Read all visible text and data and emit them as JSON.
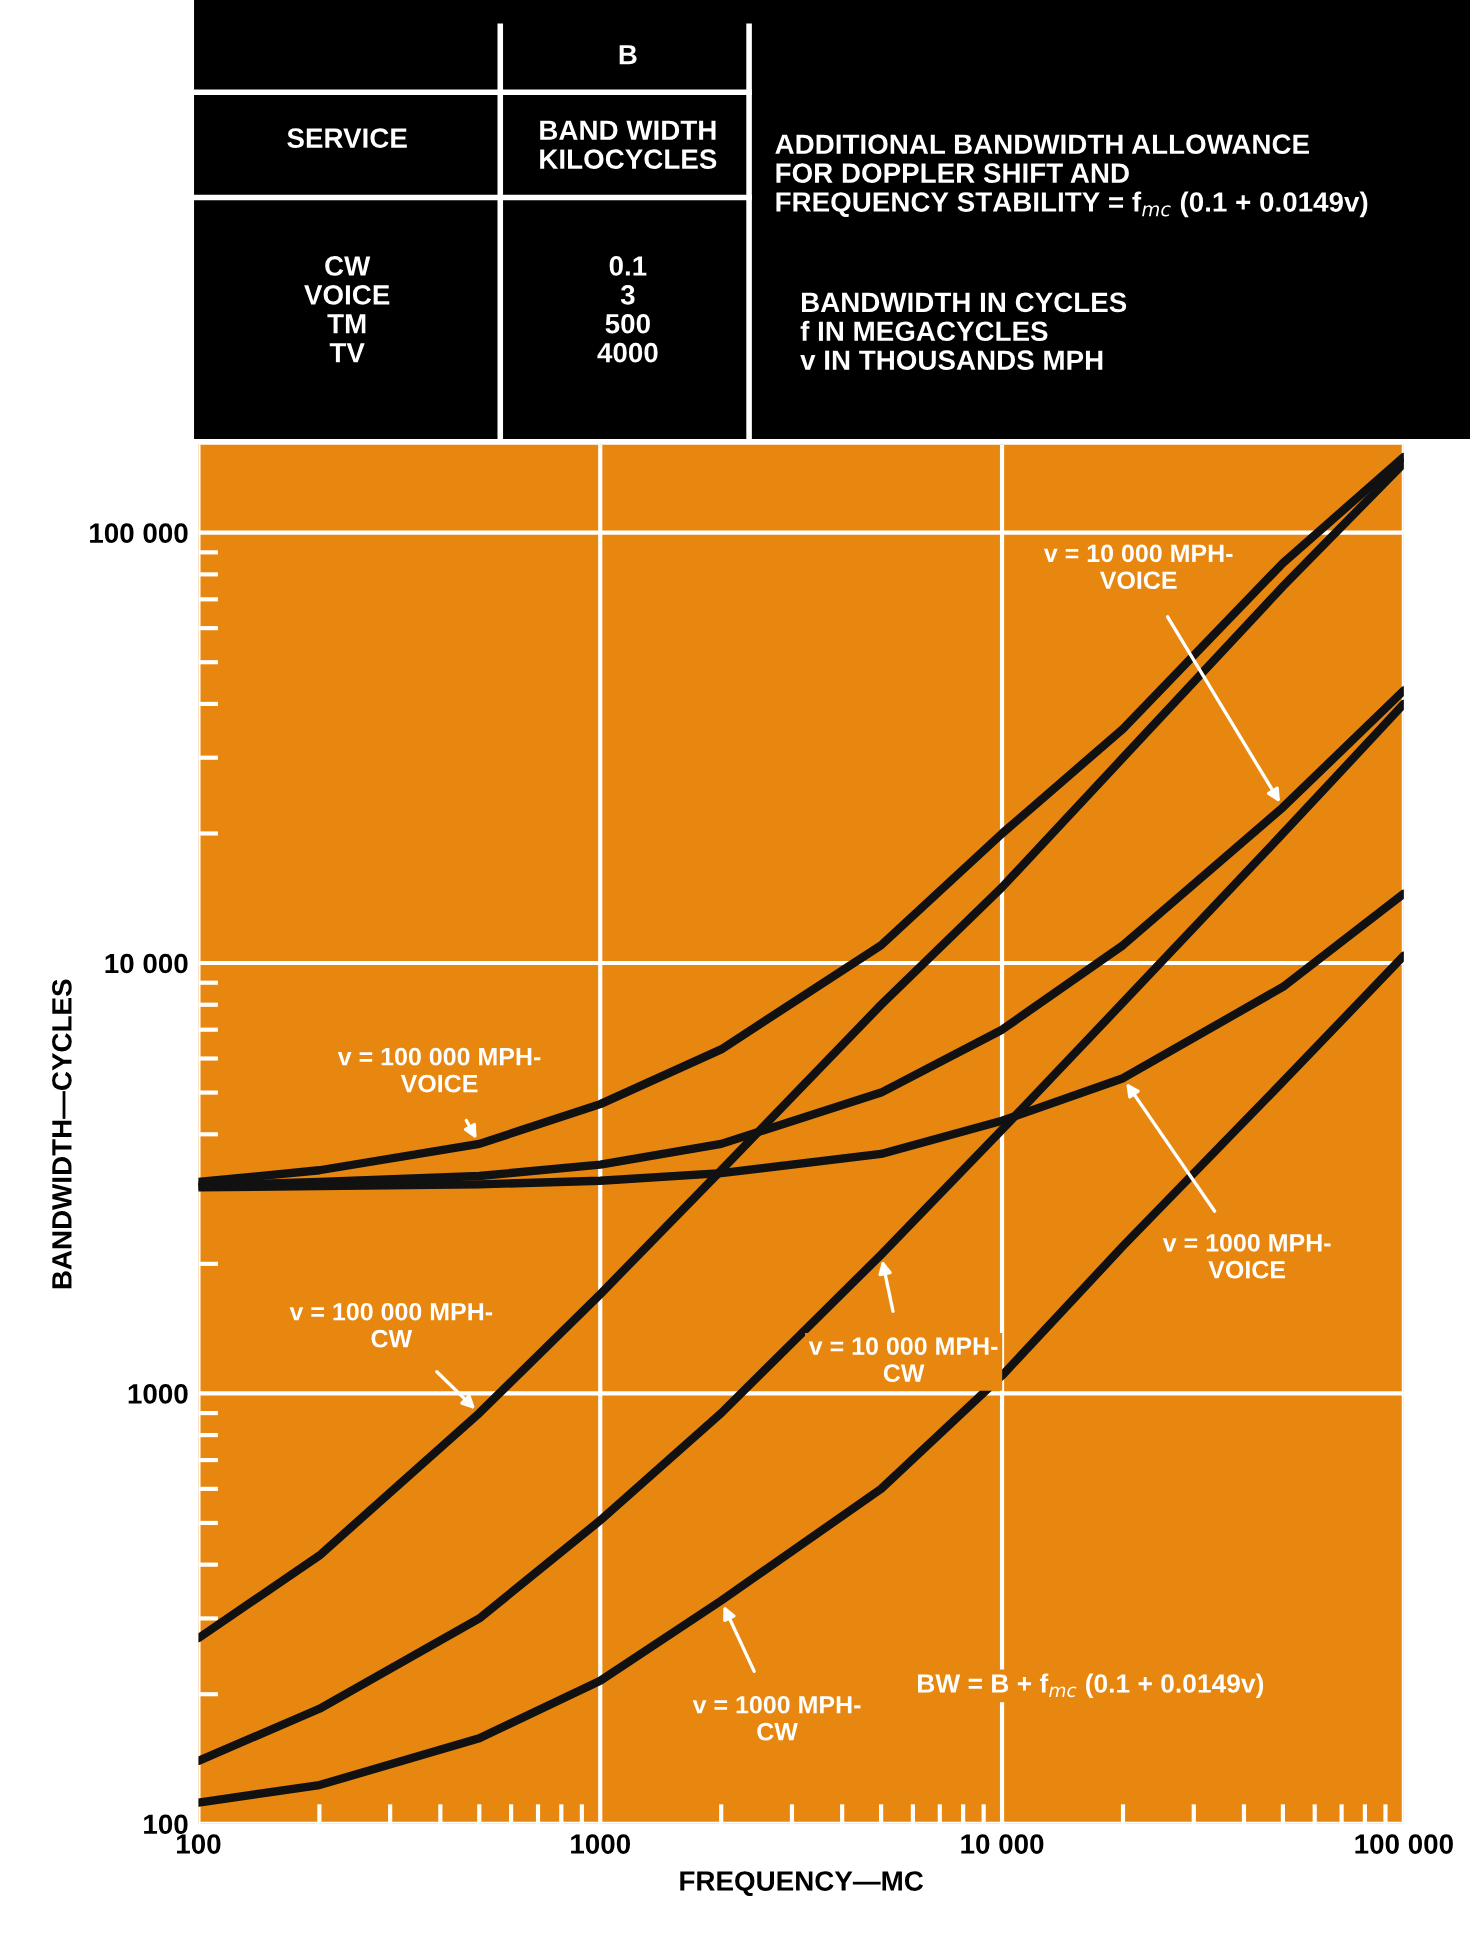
{
  "chart_data": {
    "type": "line",
    "xlabel": "FREQUENCY—MC",
    "ylabel": "BANDWIDTH—CYCLES",
    "log": "xy",
    "xlim": [
      100,
      100000
    ],
    "ylim": [
      100,
      160000
    ],
    "xticks": [
      100,
      1000,
      {
        "value": 10000,
        "label": "10 000"
      },
      {
        "value": 100000,
        "label": "100 000"
      }
    ],
    "yticks": [
      100,
      1000,
      {
        "value": 10000,
        "label": "10 000"
      },
      {
        "value": 100000,
        "label": "100 000"
      }
    ],
    "grid": true,
    "legend": false,
    "line_style": "solid",
    "marker": "none",
    "x": [
      100,
      200,
      500,
      1000,
      2000,
      5000,
      10000,
      20000,
      50000,
      100000
    ],
    "series": [
      {
        "name": "v = 100 000 MPH-\nVOICE",
        "color": "#111111",
        "values": [
          3100,
          3300,
          3800,
          4700,
          6300,
          11000,
          20000,
          35000,
          85000,
          150000
        ]
      },
      {
        "name": "v = 100 000 MPH-\nCW",
        "color": "#111111",
        "values": [
          270,
          420,
          900,
          1700,
          3300,
          8000,
          15000,
          30000,
          75000,
          145000
        ]
      },
      {
        "name": "v = 10 000 MPH-\nVOICE",
        "color": "#111111",
        "values": [
          3040,
          3100,
          3200,
          3400,
          3800,
          5000,
          7000,
          11000,
          23000,
          43000
        ]
      },
      {
        "name": "v = 1000 MPH-\nVOICE",
        "color": "#111111",
        "values": [
          3010,
          3030,
          3060,
          3120,
          3250,
          3600,
          4300,
          5400,
          8800,
          14500
        ]
      },
      {
        "name": "v = 10 000 MPH-\nCW",
        "color": "#111111",
        "values": [
          140,
          185,
          300,
          507,
          900,
          2100,
          4100,
          8100,
          20000,
          40000
        ]
      },
      {
        "name": "v = 1000 MPH-\nCW",
        "color": "#111111",
        "values": [
          112,
          123,
          158,
          215,
          330,
          600,
          1100,
          2200,
          5300,
          10400
        ]
      }
    ],
    "annotations": [
      "B",
      "SERVICE",
      "BAND WIDTH\nKILOCYCLES",
      "CW\nVOICE\nTM\nTV",
      "0.1\n3\n500\n4000",
      "ADDITIONAL BANDWIDTH ALLOWANCE\nFOR DOPPLER SHIFT AND\nFREQUENCY STABILITY = f$_{mc}$ (0.1 + 0.0149v)",
      "BANDWIDTH IN CYCLES\nf IN MEGACYCLES\nv IN THOUSANDS MPH",
      "BW = B + f$_{mc}$ (0.1 + 0.0149v)"
    ]
  }
}
